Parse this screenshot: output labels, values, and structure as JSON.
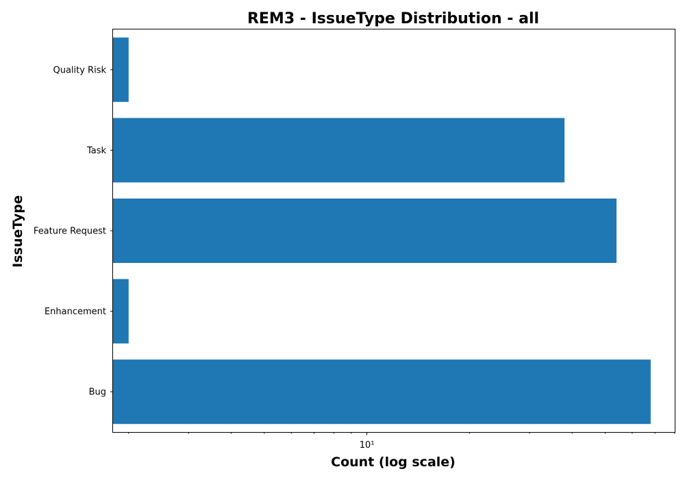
{
  "chart_data": {
    "type": "bar",
    "orientation": "horizontal",
    "title": "REM3 - IssueType Distribution - all",
    "xlabel": "Count (log scale)",
    "ylabel": "IssueType",
    "x_scale": "log",
    "x_tick_labels": [
      "10¹"
    ],
    "xlim": [
      1.8,
      80
    ],
    "categories": [
      "Bug",
      "Enhancement",
      "Feature Request",
      "Task",
      "Quality Risk"
    ],
    "values": [
      68,
      2,
      54,
      38,
      2
    ],
    "bar_color": "#1f77b4",
    "grid": false,
    "legend": "none"
  }
}
